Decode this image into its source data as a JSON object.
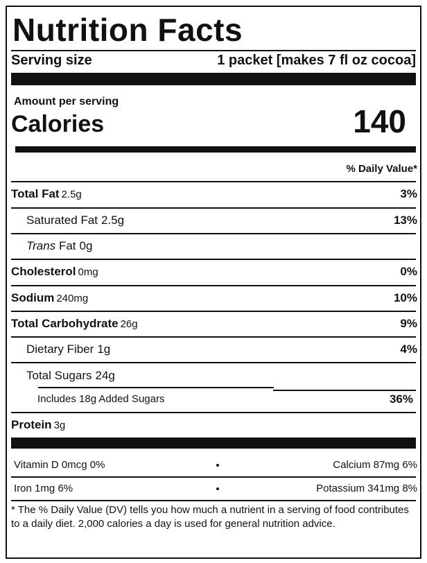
{
  "title": "Nutrition Facts",
  "serving": {
    "label": "Serving size",
    "value": "1 packet [makes 7 fl oz cocoa]"
  },
  "calories": {
    "amount_label": "Amount per serving",
    "label": "Calories",
    "value": 140
  },
  "dv_header": "% Daily Value*",
  "nutrients": [
    {
      "name": "Total Fat",
      "amount": "2.5g",
      "dv": "3%"
    },
    {
      "name": "Saturated Fat",
      "amount": "2.5g",
      "dv": "13%"
    },
    {
      "name_italic": "Trans",
      "name": "Fat",
      "amount": "0g"
    },
    {
      "name": "Cholesterol",
      "amount": "0mg",
      "dv": "0%"
    },
    {
      "name": "Sodium",
      "amount": "240mg",
      "dv": "10%"
    },
    {
      "name": "Total Carbohydrate",
      "amount": "26g",
      "dv": "9%"
    },
    {
      "name": "Dietary Fiber",
      "amount": "1g",
      "dv": "4%"
    },
    {
      "name": "Total Sugars",
      "amount": "24g"
    },
    {
      "name": "Includes 18g Added Sugars",
      "dv": "36%"
    },
    {
      "name": "Protein",
      "amount": "3g"
    }
  ],
  "vitamins": [
    [
      "Vitamin D 0mcg 0%",
      "Calcium 87mg 6%"
    ],
    [
      "Iron 1mg 6%",
      "Potassium 341mg 8%"
    ]
  ],
  "footnote": "* The % Daily Value (DV) tells you how much a nutrient in a serving of food contributes to a daily diet. 2,000 calories a day is used for general nutrition advice."
}
